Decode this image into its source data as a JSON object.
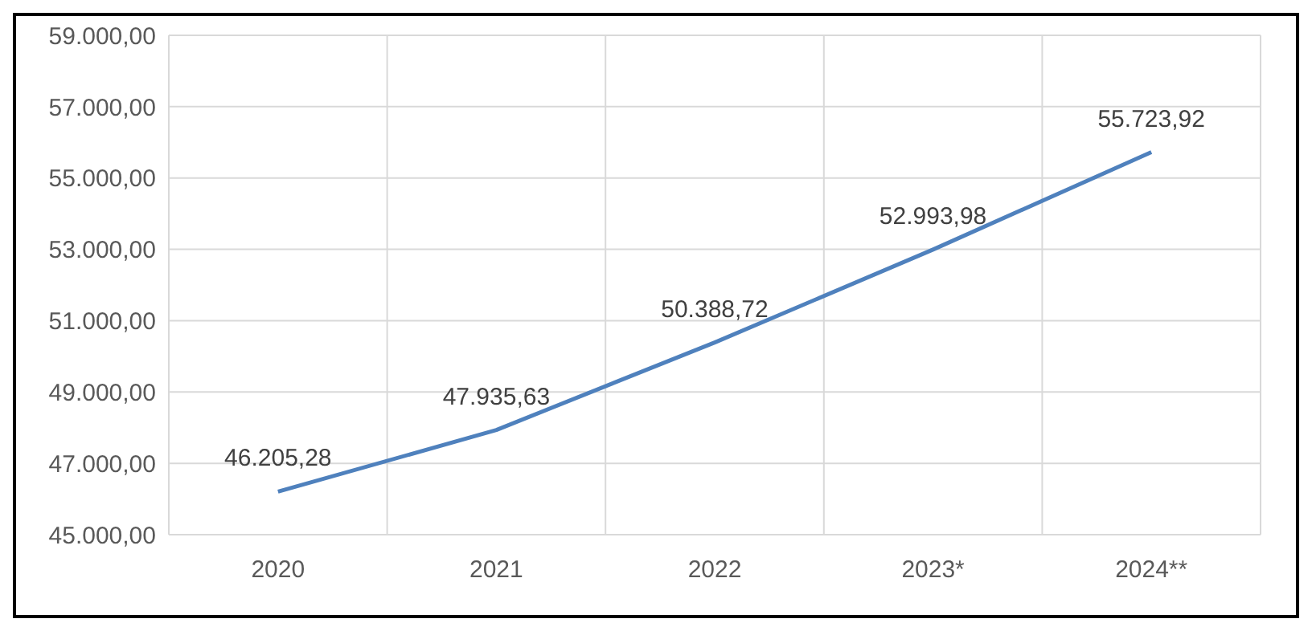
{
  "chart_data": {
    "type": "line",
    "categories": [
      "2020",
      "2021",
      "2022",
      "2023*",
      "2024**"
    ],
    "series": [
      {
        "color": "#4f81bd",
        "values": [
          46205.28,
          47935.63,
          50388.72,
          52993.98,
          55723.92
        ],
        "value_labels": [
          "46.205,28",
          "47.935,63",
          "50.388,72",
          "52.993,98",
          "55.723,92"
        ]
      }
    ],
    "ylim": [
      45000,
      59000
    ],
    "yticks": [
      {
        "value": 45000,
        "label": "45.000,00"
      },
      {
        "value": 47000,
        "label": "47.000,00"
      },
      {
        "value": 49000,
        "label": "49.000,00"
      },
      {
        "value": 51000,
        "label": "51.000,00"
      },
      {
        "value": 53000,
        "label": "53.000,00"
      },
      {
        "value": 55000,
        "label": "55.000,00"
      },
      {
        "value": 57000,
        "label": "57.000,00"
      },
      {
        "value": 59000,
        "label": "59.000,00"
      }
    ],
    "grid": true,
    "marker": "none",
    "line_style": "solid"
  }
}
